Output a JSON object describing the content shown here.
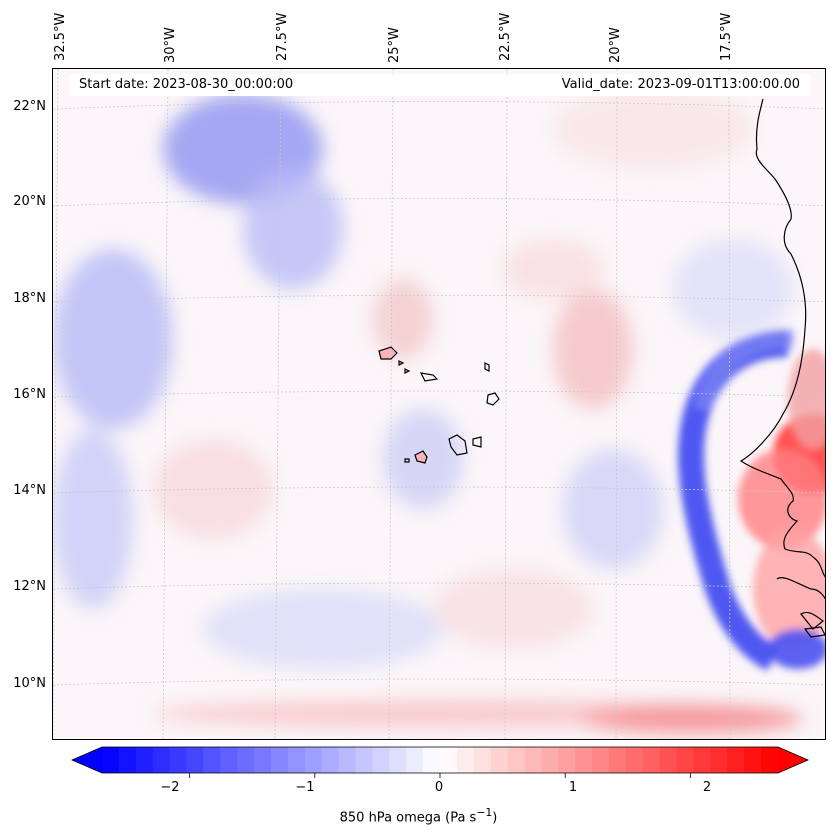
{
  "map": {
    "variable_label": "850 hPa omega (Pa s",
    "variable_unit_sup": "−1",
    "variable_close": ")",
    "start_date": "Start date: 2023-08-30_00:00:00",
    "valid_date": "Valid_date: 2023-09-01T13:00:00.00",
    "lon_labels": [
      "32.5°W",
      "30°W",
      "27.5°W",
      "25°W",
      "22.5°W",
      "20°W",
      "17.5°W"
    ],
    "lat_labels": [
      "22°N",
      "20°N",
      "18°N",
      "16°N",
      "14°N",
      "12°N",
      "10°N"
    ],
    "colorbar_ticks": [
      "−2",
      "−1",
      "0",
      "1",
      "2"
    ],
    "colorbar_range": [
      -2.7,
      2.7
    ],
    "colormap": "bwr",
    "colors": {
      "negative": "#0000ff",
      "zero": "#ffffff",
      "positive": "#ff0000",
      "coast": "#000000"
    }
  }
}
